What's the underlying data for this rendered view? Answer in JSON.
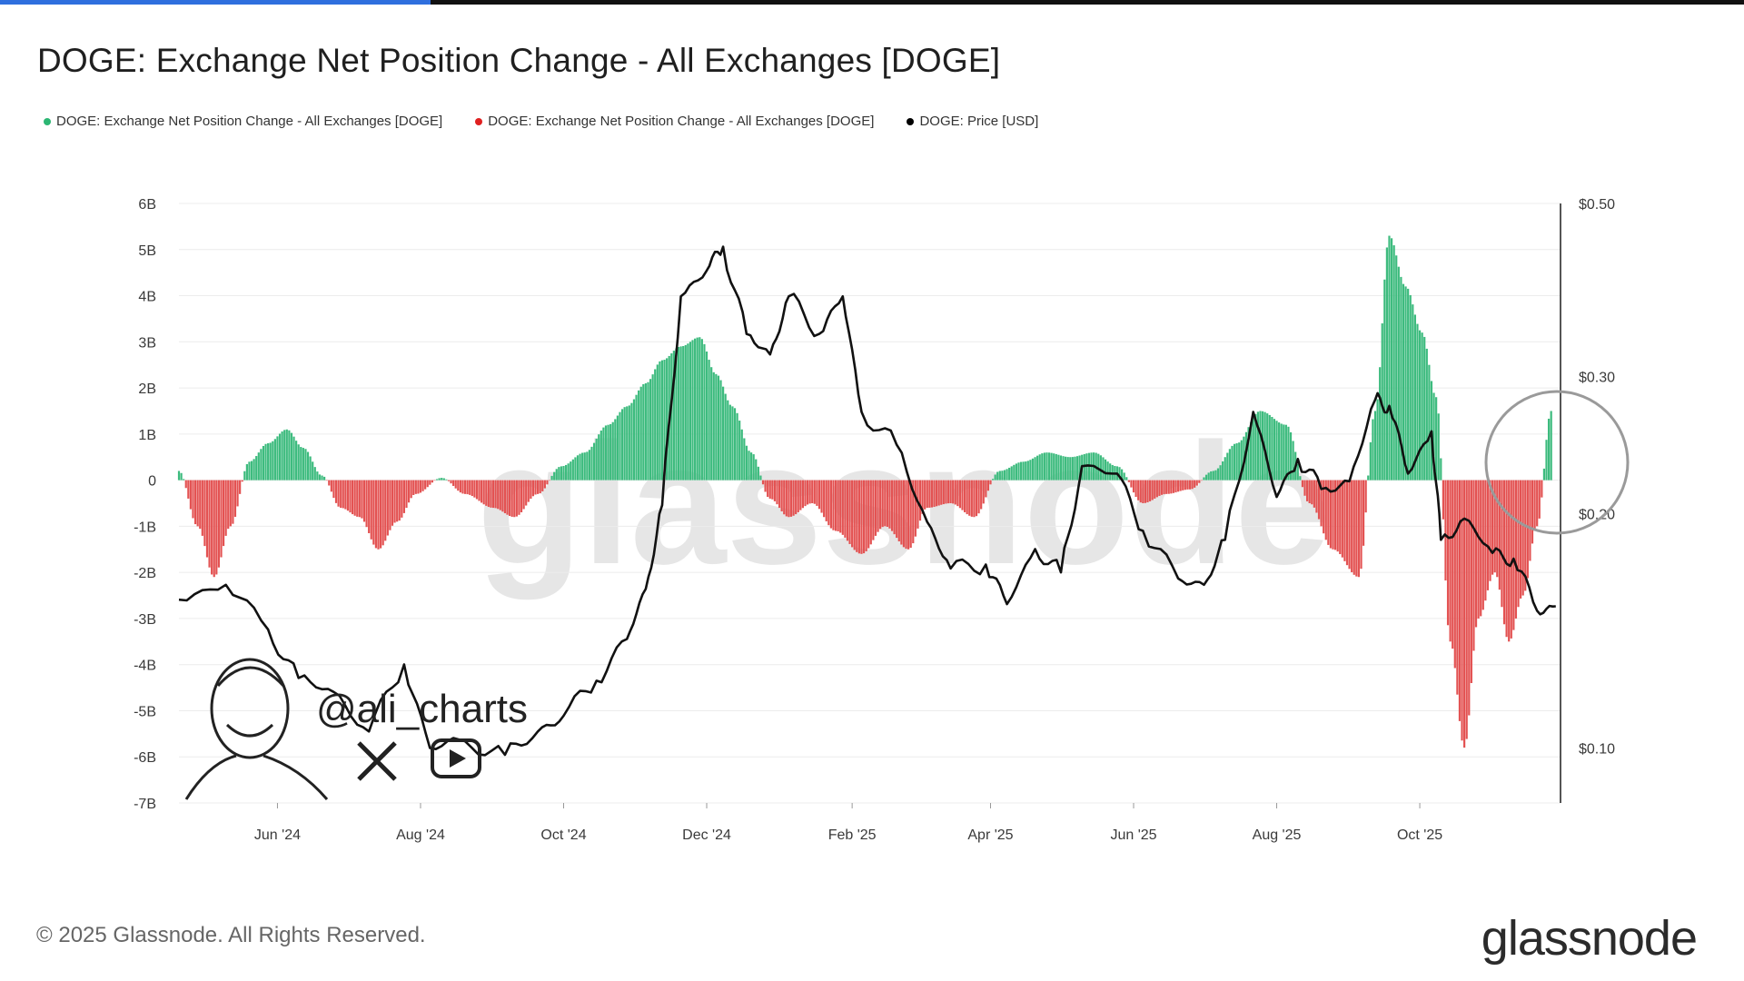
{
  "title": "DOGE: Exchange Net Position Change - All Exchanges [DOGE]",
  "legend": [
    {
      "label": "DOGE: Exchange Net Position Change - All Exchanges [DOGE]",
      "color": "#2cb673"
    },
    {
      "label": "DOGE: Exchange Net Position Change - All Exchanges [DOGE]",
      "color": "#e02020"
    },
    {
      "label": "DOGE: Price [USD]",
      "color": "#000000"
    }
  ],
  "footer": "© 2025 Glassnode. All Rights Reserved.",
  "brand": "glassnode",
  "watermark_text": "glassnode",
  "handle": "@ali_charts",
  "colors": {
    "positive": "#3dbb7e",
    "negative": "#e35252",
    "price": "#111111",
    "grid": "#ececec"
  },
  "chart_data": {
    "type": "bar+line",
    "x_ticks": [
      "Jun '24",
      "Aug '24",
      "Oct '24",
      "Dec '24",
      "Feb '25",
      "Apr '25",
      "Jun '25",
      "Aug '25",
      "Oct '25"
    ],
    "x_range": [
      "2024-04-20",
      "2025-11-30"
    ],
    "y_left": {
      "ticks": [
        "6B",
        "5B",
        "4B",
        "3B",
        "2B",
        "1B",
        "0",
        "-1B",
        "-2B",
        "-3B",
        "-4B",
        "-5B",
        "-6B",
        "-7B"
      ],
      "range": [
        -7,
        6
      ],
      "unit": "B DOGE"
    },
    "y_right": {
      "ticks": [
        "$0.50",
        "$0.30",
        "$0.20",
        "$0.10"
      ],
      "values": [
        0.5,
        0.3,
        0.2,
        0.1
      ],
      "range": [
        0.085,
        0.5
      ],
      "scale": "log"
    },
    "grid": "horizontal",
    "net_position_change": {
      "x": [
        "2024-04-20",
        "2024-04-28",
        "2024-05-05",
        "2024-05-12",
        "2024-05-20",
        "2024-05-28",
        "2024-06-05",
        "2024-06-12",
        "2024-06-20",
        "2024-06-28",
        "2024-07-06",
        "2024-07-14",
        "2024-07-22",
        "2024-07-30",
        "2024-08-10",
        "2024-08-20",
        "2024-09-01",
        "2024-09-10",
        "2024-09-20",
        "2024-09-30",
        "2024-10-10",
        "2024-10-20",
        "2024-10-28",
        "2024-11-05",
        "2024-11-12",
        "2024-11-20",
        "2024-11-28",
        "2024-12-05",
        "2024-12-12",
        "2024-12-20",
        "2024-12-28",
        "2025-01-05",
        "2025-01-15",
        "2025-01-25",
        "2025-02-05",
        "2025-02-15",
        "2025-02-25",
        "2025-03-05",
        "2025-03-15",
        "2025-03-25",
        "2025-04-05",
        "2025-04-15",
        "2025-04-25",
        "2025-05-05",
        "2025-05-15",
        "2025-05-25",
        "2025-06-05",
        "2025-06-15",
        "2025-06-25",
        "2025-07-05",
        "2025-07-15",
        "2025-07-25",
        "2025-08-05",
        "2025-08-15",
        "2025-08-25",
        "2025-09-05",
        "2025-09-12",
        "2025-09-18",
        "2025-09-25",
        "2025-10-02",
        "2025-10-08",
        "2025-10-14",
        "2025-10-20",
        "2025-10-26",
        "2025-11-02",
        "2025-11-08",
        "2025-11-14",
        "2025-11-20",
        "2025-11-26"
      ],
      "values": [
        0.2,
        -1.0,
        -2.1,
        -1.0,
        0.4,
        0.8,
        1.1,
        0.7,
        0.1,
        -0.6,
        -0.8,
        -1.5,
        -0.9,
        -0.3,
        0.05,
        -0.3,
        -0.6,
        -0.8,
        -0.3,
        0.3,
        0.6,
        1.2,
        1.6,
        2.1,
        2.6,
        2.9,
        3.1,
        2.3,
        1.6,
        0.6,
        -0.4,
        -0.8,
        -0.5,
        -1.1,
        -1.6,
        -1.0,
        -1.5,
        -0.6,
        -0.5,
        -0.8,
        0.2,
        0.4,
        0.6,
        0.5,
        0.6,
        0.3,
        -0.5,
        -0.3,
        -0.2,
        0.2,
        0.8,
        1.5,
        1.2,
        -0.5,
        -1.5,
        -2.1,
        1.5,
        5.3,
        4.2,
        3.2,
        1.8,
        -3.5,
        -5.8,
        -3.0,
        -2.0,
        -3.5,
        -2.5,
        -1.0,
        1.5
      ]
    },
    "price_usd": {
      "x": [
        "2024-04-20",
        "2024-05-10",
        "2024-05-28",
        "2024-06-10",
        "2024-06-25",
        "2024-07-10",
        "2024-07-25",
        "2024-08-05",
        "2024-08-20",
        "2024-09-06",
        "2024-09-20",
        "2024-10-01",
        "2024-10-15",
        "2024-10-28",
        "2024-11-05",
        "2024-11-12",
        "2024-11-20",
        "2024-12-01",
        "2024-12-08",
        "2024-12-18",
        "2024-12-28",
        "2025-01-05",
        "2025-01-18",
        "2025-01-28",
        "2025-02-05",
        "2025-02-20",
        "2025-03-05",
        "2025-03-15",
        "2025-03-30",
        "2025-04-08",
        "2025-04-20",
        "2025-05-01",
        "2025-05-10",
        "2025-05-25",
        "2025-06-05",
        "2025-06-20",
        "2025-07-01",
        "2025-07-10",
        "2025-07-22",
        "2025-08-01",
        "2025-08-10",
        "2025-08-20",
        "2025-09-01",
        "2025-09-12",
        "2025-09-18",
        "2025-09-26",
        "2025-10-06",
        "2025-10-10",
        "2025-10-20",
        "2025-11-01",
        "2025-11-10",
        "2025-11-20",
        "2025-11-28"
      ],
      "values": [
        0.155,
        0.162,
        0.142,
        0.123,
        0.118,
        0.105,
        0.128,
        0.1,
        0.102,
        0.098,
        0.105,
        0.11,
        0.122,
        0.138,
        0.16,
        0.205,
        0.38,
        0.41,
        0.44,
        0.34,
        0.32,
        0.38,
        0.34,
        0.38,
        0.27,
        0.245,
        0.195,
        0.17,
        0.172,
        0.153,
        0.18,
        0.168,
        0.23,
        0.225,
        0.19,
        0.165,
        0.162,
        0.185,
        0.27,
        0.21,
        0.235,
        0.215,
        0.22,
        0.28,
        0.275,
        0.225,
        0.255,
        0.185,
        0.197,
        0.178,
        0.175,
        0.15,
        0.152
      ]
    }
  }
}
